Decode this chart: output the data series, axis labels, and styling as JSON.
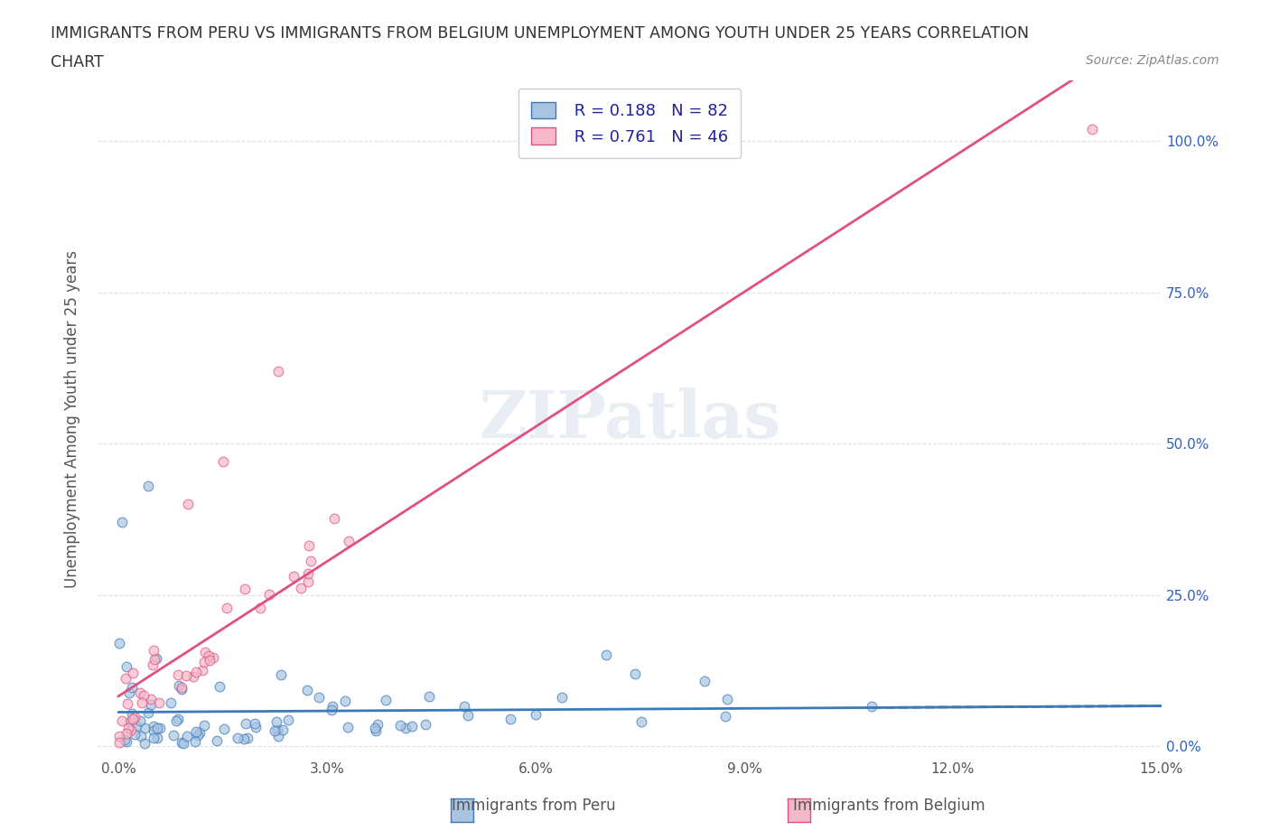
{
  "title_line1": "IMMIGRANTS FROM PERU VS IMMIGRANTS FROM BELGIUM UNEMPLOYMENT AMONG YOUTH UNDER 25 YEARS CORRELATION",
  "title_line2": "CHART",
  "source_text": "Source: ZipAtlas.com",
  "xlabel": "",
  "ylabel": "Unemployment Among Youth under 25 years",
  "xlim": [
    0.0,
    0.15
  ],
  "ylim": [
    -0.02,
    1.1
  ],
  "xticks": [
    0.0,
    0.03,
    0.06,
    0.09,
    0.12,
    0.15
  ],
  "xtick_labels": [
    "0.0%",
    "3.0%",
    "6.0%",
    "9.0%",
    "12.0%",
    "15.0%"
  ],
  "ytick_right_vals": [
    0.0,
    0.25,
    0.5,
    0.75,
    1.0
  ],
  "ytick_right_labels": [
    "0.0%",
    "25.0%",
    "50.0%",
    "75.0%",
    "100.0%"
  ],
  "peru_color": "#a8c4e0",
  "peru_color_dark": "#6baed6",
  "peru_line_color": "#3a7aba",
  "belgium_color": "#f4b8c8",
  "belgium_color_dark": "#f48fb1",
  "belgium_line_color": "#e05080",
  "peru_R": 0.188,
  "peru_N": 82,
  "belgium_R": 0.761,
  "belgium_N": 46,
  "watermark": "ZIPatlas",
  "watermark_color": "#c0cfe0",
  "legend_label_peru": "Immigrants from Peru",
  "legend_label_belgium": "Immigrants from Belgium",
  "grid_color": "#e0e0e0",
  "background_color": "#ffffff",
  "title_color": "#333333",
  "axis_label_color": "#555555",
  "tick_color": "#555555",
  "legend_text_color": "#222299",
  "seed": 42
}
